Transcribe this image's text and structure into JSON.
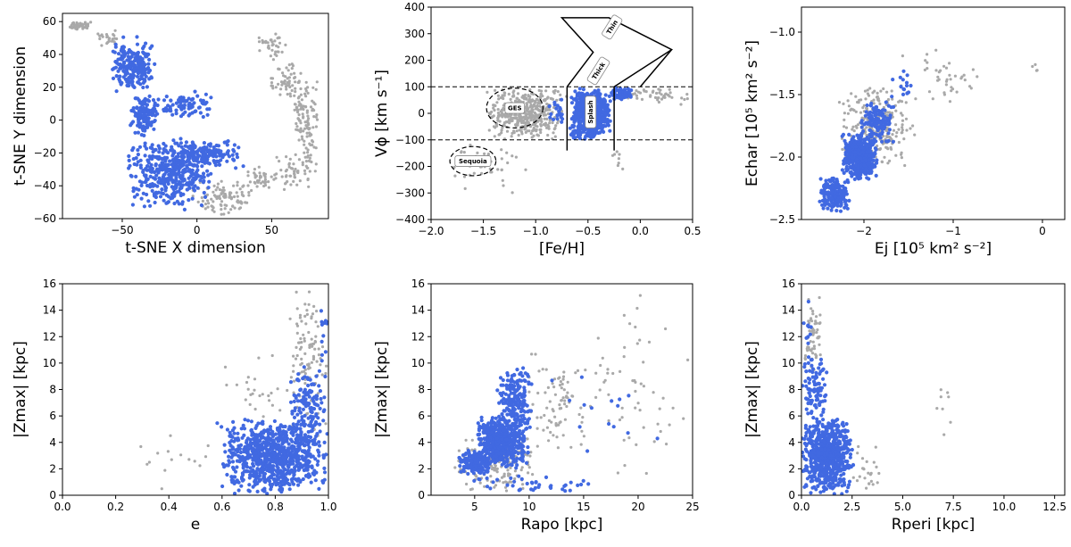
{
  "figure": {
    "point_colors": {
      "highlight": "#4169e1",
      "background": "#a9a9a9"
    }
  },
  "chart_data": [
    {
      "id": "tsne",
      "type": "scatter",
      "xlabel": "t-SNE X dimension",
      "ylabel": "t-SNE Y dimension",
      "xlim": [
        -90,
        88
      ],
      "ylim": [
        -60,
        65
      ],
      "xticks": [
        -50,
        0,
        50
      ],
      "yticks": [
        -60,
        -40,
        -20,
        0,
        20,
        40,
        60
      ],
      "xtick_labels": [
        "−50",
        "0",
        "50"
      ],
      "ytick_labels": [
        "−60",
        "−40",
        "−20",
        "0",
        "20",
        "40",
        "60"
      ],
      "grid": false,
      "series": [
        {
          "color": "#a9a9a9",
          "clusters": [
            {
              "x": [
                -86,
                -70
              ],
              "y": [
                55,
                60
              ],
              "n": 50
            },
            {
              "x": [
                -70,
                -52
              ],
              "y": [
                45,
                55
              ],
              "n": 25
            },
            {
              "x": [
                -5,
                40
              ],
              "y": [
                -58,
                -36
              ],
              "n": 110
            },
            {
              "x": [
                30,
                55
              ],
              "y": [
                -42,
                -28
              ],
              "n": 40
            },
            {
              "x": [
                50,
                78
              ],
              "y": [
                -45,
                -20
              ],
              "n": 45
            },
            {
              "x": [
                63,
                82
              ],
              "y": [
                -35,
                30
              ],
              "n": 120
            },
            {
              "x": [
                38,
                62
              ],
              "y": [
                38,
                55
              ],
              "n": 35
            },
            {
              "x": [
                48,
                72
              ],
              "y": [
                12,
                38
              ],
              "n": 55
            }
          ]
        },
        {
          "color": "#4169e1",
          "clusters": [
            {
              "x": [
                -58,
                -28
              ],
              "y": [
                15,
                52
              ],
              "n": 220
            },
            {
              "x": [
                -48,
                10
              ],
              "y": [
                -55,
                -10
              ],
              "n": 420
            },
            {
              "x": [
                -20,
                33
              ],
              "y": [
                -30,
                -12
              ],
              "n": 150
            },
            {
              "x": [
                -45,
                -25
              ],
              "y": [
                -10,
                15
              ],
              "n": 120
            },
            {
              "x": [
                -28,
                12
              ],
              "y": [
                0,
                18
              ],
              "n": 80
            }
          ]
        }
      ]
    },
    {
      "id": "vphi_feh",
      "type": "scatter",
      "xlabel": "[Fe/H]",
      "ylabel": "Vϕ [km s⁻¹]",
      "xlim": [
        -2.0,
        0.5
      ],
      "ylim": [
        -400,
        400
      ],
      "xticks": [
        -2.0,
        -1.5,
        -1.0,
        -0.5,
        0.0,
        0.5
      ],
      "yticks": [
        -400,
        -300,
        -200,
        -100,
        0,
        100,
        200,
        300,
        400
      ],
      "xtick_labels": [
        "−2.0",
        "−1.5",
        "−1.0",
        "−0.5",
        "0.0",
        "0.5"
      ],
      "ytick_labels": [
        "−400",
        "−300",
        "−200",
        "−100",
        "0",
        "100",
        "200",
        "300",
        "400"
      ],
      "grid": false,
      "hlines": [
        100,
        -100
      ],
      "regions": [
        {
          "label": "GES",
          "shape": "ellipse",
          "cx": -1.2,
          "cy": 20,
          "rx": 0.27,
          "ry": 75
        },
        {
          "label": "Sequoia",
          "shape": "ellipse",
          "cx": -1.6,
          "cy": -180,
          "rx": 0.22,
          "ry": 55
        },
        {
          "label": "Splash",
          "shape": "box",
          "x": [
            -0.7,
            -0.25
          ],
          "y": [
            -100,
            100
          ]
        },
        {
          "label": "Thick",
          "shape": "polygon",
          "points": [
            [
              -0.7,
              100
            ],
            [
              -0.45,
              220
            ],
            [
              -0.65,
              380
            ],
            [
              -0.3,
              380
            ]
          ]
        },
        {
          "label": "Thin",
          "shape": "polygon",
          "points": [
            [
              -0.25,
              100
            ],
            [
              0.2,
              100
            ],
            [
              0.05,
              250
            ]
          ]
        }
      ],
      "series": [
        {
          "color": "#a9a9a9",
          "clusters": [
            {
              "x": [
                -1.5,
                -0.7
              ],
              "y": [
                -100,
                100
              ],
              "n": 450
            },
            {
              "x": [
                -1.9,
                -1.0
              ],
              "y": [
                -300,
                -100
              ],
              "n": 45
            },
            {
              "x": [
                -0.2,
                0.5
              ],
              "y": [
                30,
                100
              ],
              "n": 45
            },
            {
              "x": [
                -0.4,
                0.0
              ],
              "y": [
                -300,
                -100
              ],
              "n": 8
            }
          ]
        },
        {
          "color": "#4169e1",
          "clusters": [
            {
              "x": [
                -0.68,
                -0.28
              ],
              "y": [
                -100,
                100
              ],
              "n": 650
            },
            {
              "x": [
                -0.3,
                -0.05
              ],
              "y": [
                50,
                100
              ],
              "n": 70
            },
            {
              "x": [
                -0.9,
                -0.7
              ],
              "y": [
                -60,
                80
              ],
              "n": 20
            }
          ]
        }
      ]
    },
    {
      "id": "energy",
      "type": "scatter",
      "xlabel": "Ej [10⁵ km² s⁻²]",
      "ylabel": "Echar [10⁵ km² s⁻²]",
      "xlim": [
        -2.7,
        0.25
      ],
      "ylim": [
        -2.5,
        -0.8
      ],
      "xticks": [
        -2,
        -1,
        0
      ],
      "yticks": [
        -2.5,
        -2.0,
        -1.5,
        -1.0
      ],
      "xtick_labels": [
        "−2",
        "−1",
        "0"
      ],
      "ytick_labels": [
        "−2.5",
        "−2.0",
        "−1.5",
        "−1.0"
      ],
      "grid": false,
      "series": [
        {
          "color": "#a9a9a9",
          "clusters": [
            {
              "x": [
                -2.3,
                -1.4
              ],
              "y": [
                -2.1,
                -1.4
              ],
              "n": 260
            },
            {
              "x": [
                -1.6,
                -0.6
              ],
              "y": [
                -1.6,
                -1.1
              ],
              "n": 40
            },
            {
              "x": [
                -0.2,
                0.0
              ],
              "y": [
                -1.35,
                -1.25
              ],
              "n": 4
            }
          ]
        },
        {
          "color": "#4169e1",
          "clusters": [
            {
              "x": [
                -2.5,
                -2.15
              ],
              "y": [
                -2.45,
                -2.15
              ],
              "n": 160
            },
            {
              "x": [
                -2.25,
                -1.85
              ],
              "y": [
                -2.2,
                -1.8
              ],
              "n": 450
            },
            {
              "x": [
                -2.05,
                -1.65
              ],
              "y": [
                -1.9,
                -1.55
              ],
              "n": 130
            },
            {
              "x": [
                -1.7,
                -1.45
              ],
              "y": [
                -1.55,
                -1.3
              ],
              "n": 15
            }
          ]
        }
      ]
    },
    {
      "id": "zmax_e",
      "type": "scatter",
      "xlabel": "e",
      "ylabel": "|Zmax| [kpc]",
      "xlim": [
        0.0,
        1.0
      ],
      "ylim": [
        0,
        16
      ],
      "xticks": [
        0.0,
        0.2,
        0.4,
        0.6,
        0.8,
        1.0
      ],
      "yticks": [
        0,
        2,
        4,
        6,
        8,
        10,
        12,
        14,
        16
      ],
      "xtick_labels": [
        "0.0",
        "0.2",
        "0.4",
        "0.6",
        "0.8",
        "1.0"
      ],
      "ytick_labels": [
        "0",
        "2",
        "4",
        "6",
        "8",
        "10",
        "12",
        "14",
        "16"
      ],
      "grid": false,
      "series": [
        {
          "color": "#a9a9a9",
          "clusters": [
            {
              "x": [
                0.85,
                1.0
              ],
              "y": [
                4,
                16
              ],
              "n": 110
            },
            {
              "x": [
                0.25,
                0.6
              ],
              "y": [
                0,
                6
              ],
              "n": 15
            },
            {
              "x": [
                0.6,
                0.85
              ],
              "y": [
                5,
                11
              ],
              "n": 25
            }
          ]
        },
        {
          "color": "#4169e1",
          "clusters": [
            {
              "x": [
                0.58,
                1.0
              ],
              "y": [
                0,
                6
              ],
              "n": 850
            },
            {
              "x": [
                0.85,
                1.0
              ],
              "y": [
                4,
                10
              ],
              "n": 130
            },
            {
              "x": [
                0.95,
                1.0
              ],
              "y": [
                10,
                15
              ],
              "n": 12
            }
          ]
        }
      ]
    },
    {
      "id": "zmax_rapo",
      "type": "scatter",
      "xlabel": "Rapo [kpc]",
      "ylabel": "|Zmax| [kpc]",
      "xlim": [
        1,
        25
      ],
      "ylim": [
        0,
        16
      ],
      "xticks": [
        5,
        10,
        15,
        20,
        25
      ],
      "yticks": [
        0,
        2,
        4,
        6,
        8,
        10,
        12,
        14,
        16
      ],
      "xtick_labels": [
        "5",
        "10",
        "15",
        "20",
        "25"
      ],
      "ytick_labels": [
        "0",
        "2",
        "4",
        "6",
        "8",
        "10",
        "12",
        "14",
        "16"
      ],
      "grid": false,
      "series": [
        {
          "color": "#a9a9a9",
          "clusters": [
            {
              "x": [
                3,
                11
              ],
              "y": [
                0,
                5
              ],
              "n": 160
            },
            {
              "x": [
                9,
                16
              ],
              "y": [
                3,
                11
              ],
              "n": 80
            },
            {
              "x": [
                14,
                25
              ],
              "y": [
                0,
                16
              ],
              "n": 60
            }
          ]
        },
        {
          "color": "#4169e1",
          "clusters": [
            {
              "x": [
                3.5,
                7
              ],
              "y": [
                1.5,
                3.5
              ],
              "n": 180
            },
            {
              "x": [
                5,
                10
              ],
              "y": [
                2,
                6
              ],
              "n": 520
            },
            {
              "x": [
                7,
                10.5
              ],
              "y": [
                4,
                10
              ],
              "n": 200
            },
            {
              "x": [
                4,
                16
              ],
              "y": [
                0,
                1.5
              ],
              "n": 40
            },
            {
              "x": [
                12,
                22
              ],
              "y": [
                2,
                10
              ],
              "n": 15
            }
          ]
        }
      ]
    },
    {
      "id": "zmax_rperi",
      "type": "scatter",
      "xlabel": "Rperi [kpc]",
      "ylabel": "|Zmax| [kpc]",
      "xlim": [
        0.0,
        13.0
      ],
      "ylim": [
        0,
        16
      ],
      "xticks": [
        0.0,
        2.5,
        5.0,
        7.5,
        10.0,
        12.5
      ],
      "yticks": [
        0,
        2,
        4,
        6,
        8,
        10,
        12,
        14,
        16
      ],
      "xtick_labels": [
        "0.0",
        "2.5",
        "5.0",
        "7.5",
        "10.0",
        "12.5"
      ],
      "ytick_labels": [
        "0",
        "2",
        "4",
        "6",
        "8",
        "10",
        "12",
        "14",
        "16"
      ],
      "grid": false,
      "series": [
        {
          "color": "#a9a9a9",
          "clusters": [
            {
              "x": [
                0.0,
                1.0
              ],
              "y": [
                8,
                16
              ],
              "n": 60
            },
            {
              "x": [
                2.0,
                4.0
              ],
              "y": [
                0,
                4
              ],
              "n": 25
            },
            {
              "x": [
                6.0,
                7.8
              ],
              "y": [
                4,
                11
              ],
              "n": 8
            }
          ]
        },
        {
          "color": "#4169e1",
          "clusters": [
            {
              "x": [
                0.0,
                2.6
              ],
              "y": [
                0,
                6
              ],
              "n": 650
            },
            {
              "x": [
                0.0,
                1.3
              ],
              "y": [
                5,
                11
              ],
              "n": 90
            },
            {
              "x": [
                0.0,
                0.6
              ],
              "y": [
                11,
                15
              ],
              "n": 10
            }
          ]
        }
      ]
    }
  ]
}
